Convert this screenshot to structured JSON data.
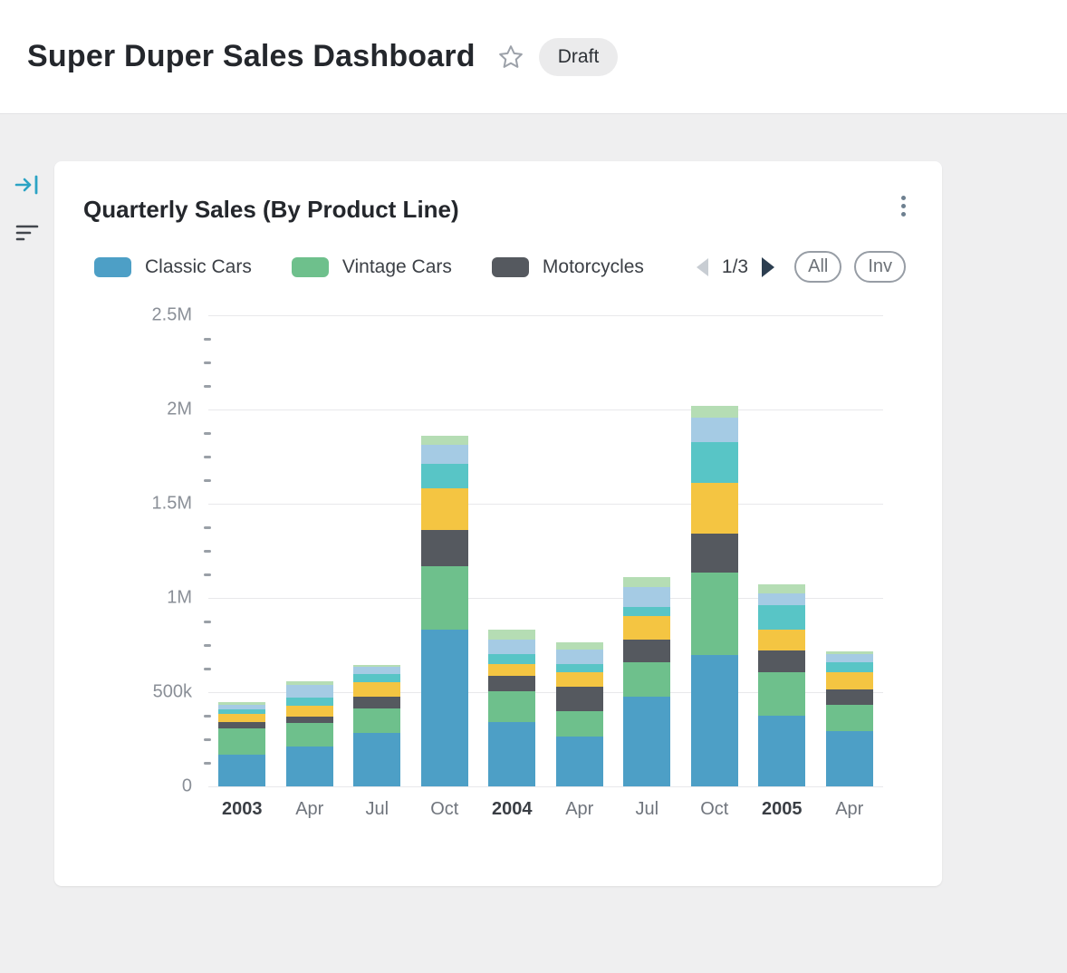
{
  "header": {
    "title": "Super Duper Sales Dashboard",
    "badge": "Draft"
  },
  "side_toolbar": {
    "collapse_icon": "arrow-to-bar",
    "filter_icon": "filter-lines"
  },
  "card": {
    "title": "Quarterly Sales (By Product Line)",
    "menu_icon": "kebab-menu",
    "legend": [
      {
        "label": "Classic Cars",
        "color": "#4d9fc6"
      },
      {
        "label": "Vintage Cars",
        "color": "#6ec08c"
      },
      {
        "label": "Motorcycles",
        "color": "#55595f"
      }
    ],
    "legend_pager": {
      "page": "1/3",
      "prev_enabled": false,
      "next_enabled": true
    },
    "filter_buttons": [
      {
        "label": "All"
      },
      {
        "label": "Inv"
      }
    ]
  },
  "chart_data": {
    "type": "bar",
    "stacked": true,
    "title": "Quarterly Sales (By Product Line)",
    "categories": [
      "2003",
      "Apr",
      "Jul",
      "Oct",
      "2004",
      "Apr",
      "Jul",
      "Oct",
      "2005",
      "Apr"
    ],
    "emphasis": [
      true,
      false,
      false,
      false,
      true,
      false,
      false,
      false,
      true,
      false
    ],
    "series": [
      {
        "name": "Classic Cars",
        "color": "#4d9fc6",
        "values": [
          170000,
          210000,
          285000,
          830000,
          340000,
          265000,
          475000,
          695000,
          375000,
          295000
        ]
      },
      {
        "name": "Vintage Cars",
        "color": "#6ec08c",
        "values": [
          140000,
          125000,
          130000,
          340000,
          165000,
          135000,
          185000,
          440000,
          230000,
          140000
        ]
      },
      {
        "name": "Motorcycles",
        "color": "#55595f",
        "values": [
          30000,
          35000,
          60000,
          190000,
          80000,
          130000,
          120000,
          205000,
          115000,
          80000
        ]
      },
      {
        "name": "unlabeled-yellow-series",
        "color": "#f4c542",
        "values": [
          45000,
          60000,
          80000,
          220000,
          65000,
          75000,
          125000,
          270000,
          110000,
          90000
        ]
      },
      {
        "name": "unlabeled-teal-series",
        "color": "#58c5c6",
        "values": [
          25000,
          40000,
          40000,
          130000,
          50000,
          45000,
          45000,
          215000,
          130000,
          55000
        ]
      },
      {
        "name": "unlabeled-light-blue-series",
        "color": "#a5cbe4",
        "values": [
          25000,
          70000,
          40000,
          105000,
          80000,
          75000,
          110000,
          130000,
          65000,
          40000
        ]
      },
      {
        "name": "unlabeled-light-green-series",
        "color": "#b5ddb4",
        "values": [
          10000,
          20000,
          10000,
          45000,
          50000,
          40000,
          50000,
          65000,
          45000,
          15000
        ]
      }
    ],
    "yticks": [
      {
        "value": 0,
        "label": "0"
      },
      {
        "value": 500000,
        "label": "500k"
      },
      {
        "value": 1000000,
        "label": "1M"
      },
      {
        "value": 1500000,
        "label": "1.5M"
      },
      {
        "value": 2000000,
        "label": "2M"
      },
      {
        "value": 2500000,
        "label": "2.5M"
      }
    ],
    "minor_tick_step": 125000,
    "major_tick_step": 500000,
    "ylim": [
      0,
      2500000
    ],
    "grid": true,
    "legend_position": "top",
    "legend_visible_series": [
      "Classic Cars",
      "Vintage Cars",
      "Motorcycles"
    ],
    "legend_page": "1/3"
  }
}
